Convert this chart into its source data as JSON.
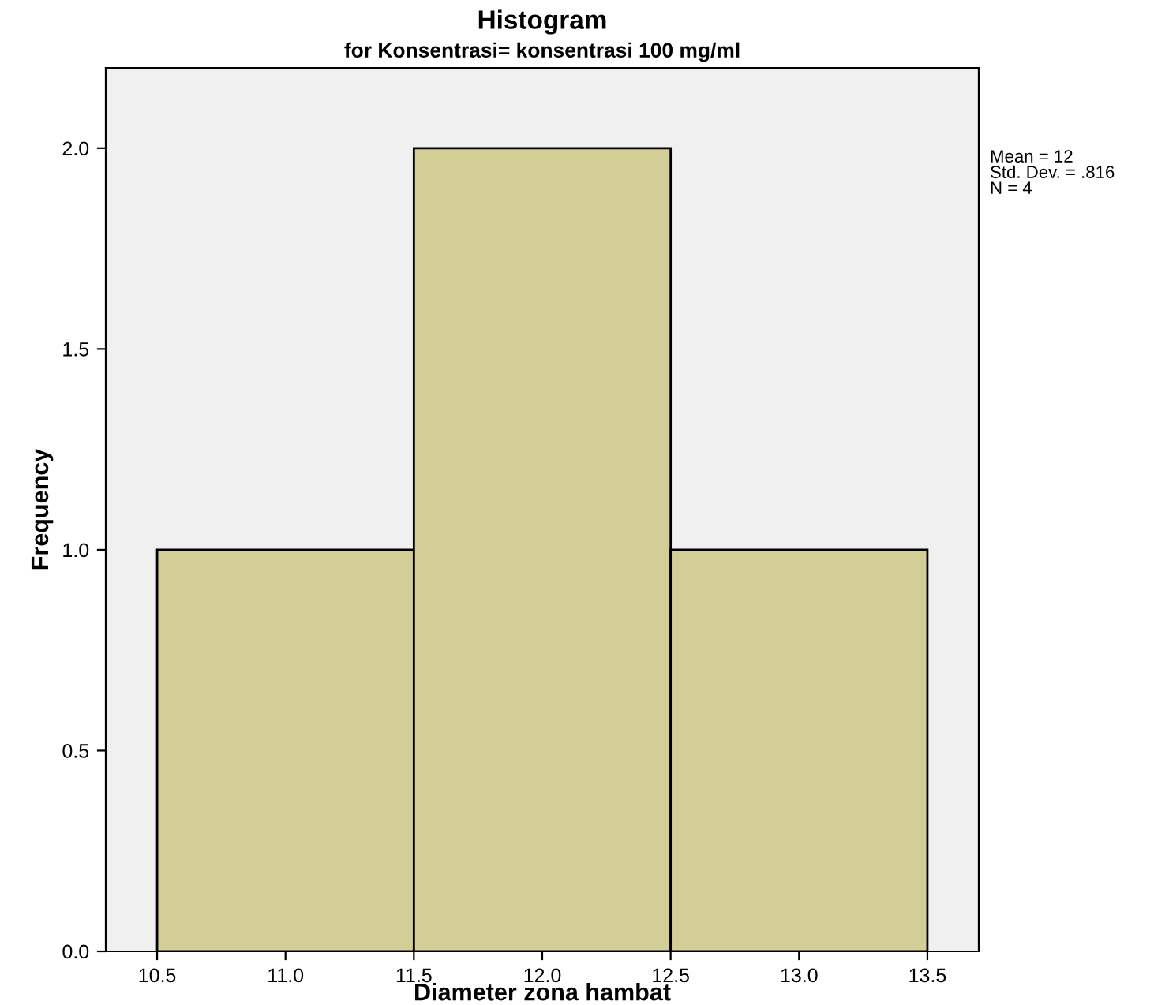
{
  "chart_data": {
    "type": "histogram",
    "title": "Histogram",
    "subtitle": "for Konsentrasi= konsentrasi 100 mg/ml",
    "xlabel": "Diameter zona hambat",
    "ylabel": "Frequency",
    "bins": [
      10.5,
      11.5,
      12.5,
      13.5
    ],
    "values": [
      1,
      2,
      1
    ],
    "color": "#d3ce98",
    "xlim": [
      10.3,
      13.7
    ],
    "ylim": [
      0,
      2.2
    ],
    "xticks": [
      {
        "value": 10.5,
        "label": "10.5"
      },
      {
        "value": 11,
        "label": "11.0"
      },
      {
        "value": 11.5,
        "label": "11.5"
      },
      {
        "value": 12,
        "label": "12.0"
      },
      {
        "value": 12.5,
        "label": "12.5"
      },
      {
        "value": 13,
        "label": "13.0"
      },
      {
        "value": 13.5,
        "label": "13.5"
      }
    ],
    "yticks": [
      {
        "value": 0,
        "label": "0.0"
      },
      {
        "value": 0.5,
        "label": "0.5"
      },
      {
        "value": 1,
        "label": "1.0"
      },
      {
        "value": 1.5,
        "label": "1.5"
      },
      {
        "value": 2,
        "label": "2.0"
      }
    ],
    "grid": false,
    "legend": false,
    "annotations": [
      "Mean = 12",
      "Std. Dev. = .816",
      "N = 4"
    ]
  }
}
